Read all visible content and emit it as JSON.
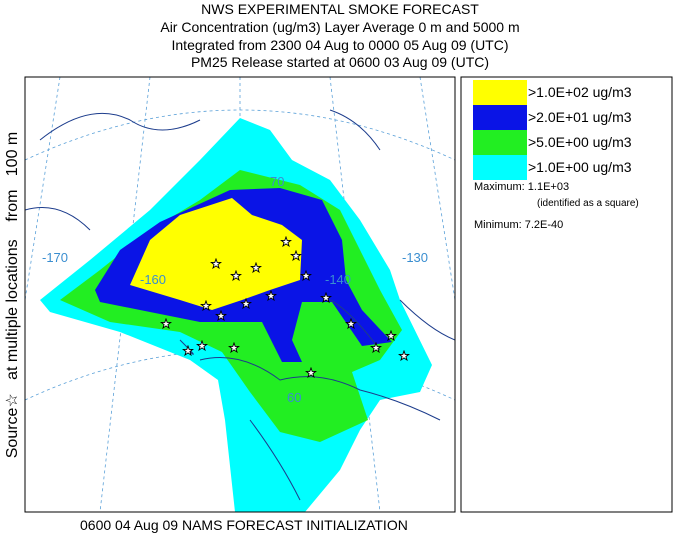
{
  "header": {
    "lines": [
      "NWS EXPERIMENTAL SMOKE FORECAST",
      "Air Concentration (ug/m3) Layer Average    0 m and  5000 m",
      "Integrated from 2300 04 Aug to 0000 05 Aug 09 (UTC)",
      "PM25 Release started at 0600 03 Aug 09 (UTC)"
    ]
  },
  "side_label": "Source☆   at multiple locations    from   100 m",
  "map": {
    "grid_labels": [
      "-170",
      "-160",
      "-140",
      "-130",
      "70",
      "60"
    ]
  },
  "legend": {
    "items": [
      {
        "label": ">1.0E+02 ug/m3",
        "color": "#ffff00"
      },
      {
        "label": ">2.0E+01 ug/m3",
        "color": "#0a14e6"
      },
      {
        "label": ">5.0E+00 ug/m3",
        "color": "#22ee22"
      },
      {
        "label": ">1.0E+00 ug/m3",
        "color": "#00ffff"
      }
    ],
    "maximum": "Maximum: 1.1E+03",
    "maximum_note": "(identified as a square)",
    "minimum": "Minimum: 7.2E-40"
  },
  "footer": "0600 04 Aug 09 NAMS FORECAST INITIALIZATION"
}
